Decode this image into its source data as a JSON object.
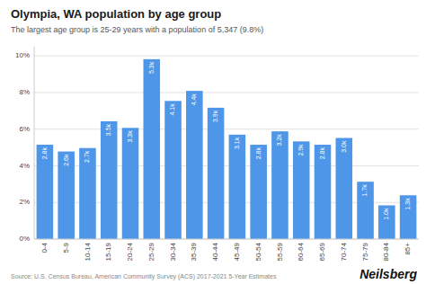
{
  "chart_data": {
    "type": "bar",
    "title": "Olympia, WA population by age group",
    "subtitle": "The largest age group is 25-29 years with a population of 5,347 (9.8%)",
    "annotations": [
      "Source: U.S. Census Bureau, American Community Survey (ACS) 2017-2021 5-Year Estimates",
      "Neilsberg"
    ],
    "categories": [
      "0-4",
      "5-9",
      "10-14",
      "15-19",
      "20-24",
      "25-29",
      "30-34",
      "35-39",
      "40-44",
      "45-49",
      "50-54",
      "55-59",
      "60-64",
      "65-69",
      "70-74",
      "75-79",
      "80-84",
      "85+"
    ],
    "values": [
      5.15,
      4.78,
      4.97,
      6.43,
      6.07,
      9.82,
      7.54,
      8.09,
      7.17,
      5.7,
      5.15,
      5.88,
      5.33,
      5.15,
      5.52,
      3.13,
      1.84,
      2.39
    ],
    "labels": [
      "2.8k",
      "2.6k",
      "2.7k",
      "3.5k",
      "3.3k",
      "5.3k",
      "4.1k",
      "4.4k",
      "3.9k",
      "3.1k",
      "2.8k",
      "3.2k",
      "2.9k",
      "2.8k",
      "3.0k",
      "1.7k",
      "1.0k",
      "1.3k"
    ],
    "color": "#4d96e8",
    "ylim": [
      0,
      10.5
    ],
    "yticks": [
      {
        "value": 0,
        "label": "0%"
      },
      {
        "value": 2,
        "label": "2%"
      },
      {
        "value": 4,
        "label": "4%"
      },
      {
        "value": 6,
        "label": "6%"
      },
      {
        "value": 8,
        "label": "8%"
      },
      {
        "value": 10,
        "label": "10%"
      }
    ],
    "grid": true
  }
}
